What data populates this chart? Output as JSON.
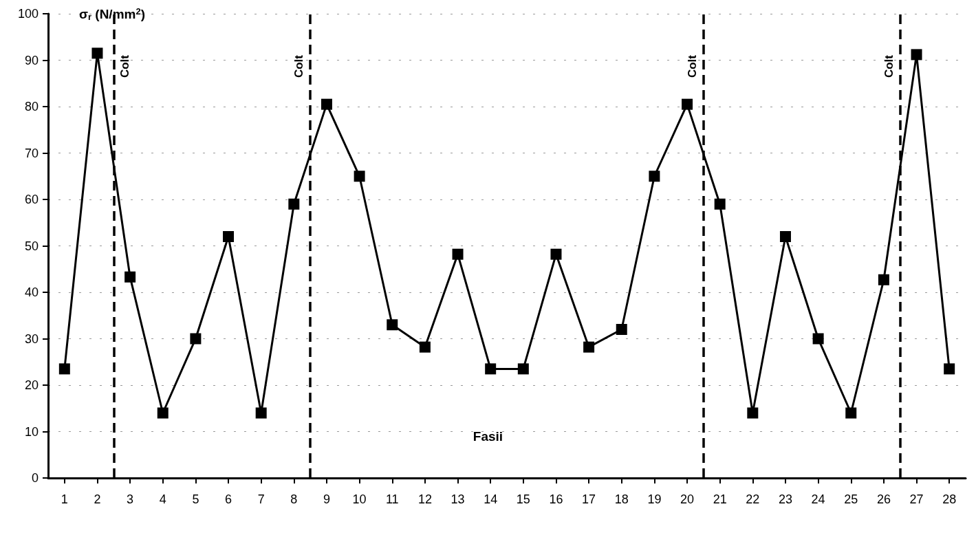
{
  "chart_data": {
    "type": "line",
    "xlabel": "Fasii",
    "ylabel": "σ$_{r}$ (N/mm$^{2}$)",
    "x": [
      1,
      2,
      3,
      4,
      5,
      6,
      7,
      8,
      9,
      10,
      11,
      12,
      13,
      14,
      15,
      16,
      17,
      18,
      19,
      20,
      21,
      22,
      23,
      24,
      25,
      26,
      27,
      28
    ],
    "xlim": [
      0.5,
      28.5
    ],
    "xticks": [
      1,
      2,
      3,
      4,
      5,
      6,
      7,
      8,
      9,
      10,
      11,
      12,
      13,
      14,
      15,
      16,
      17,
      18,
      19,
      20,
      21,
      22,
      23,
      24,
      25,
      26,
      27,
      28
    ],
    "values": [
      23.5,
      91.5,
      43.3,
      14,
      30,
      52,
      14,
      59,
      80.5,
      65,
      33,
      28.2,
      48.2,
      23.5,
      23.5,
      48.2,
      28.2,
      32,
      65,
      80.5,
      59,
      14,
      52,
      30,
      14,
      42.7,
      91.2,
      23.5
    ],
    "color": "#000000",
    "marker": "square",
    "line_style": "solid",
    "ylim": [
      0,
      100
    ],
    "yticks": [
      0,
      10,
      20,
      30,
      40,
      50,
      60,
      70,
      80,
      90,
      100
    ],
    "grid": "y",
    "ref_lines": [
      {
        "axis": "x",
        "value": 2.5,
        "label": "Colt",
        "line_style": "dashed"
      },
      {
        "axis": "x",
        "value": 8.5,
        "label": "Colt",
        "line_style": "dashed"
      },
      {
        "axis": "x",
        "value": 20.5,
        "label": "Colt",
        "line_style": "dashed"
      },
      {
        "axis": "x",
        "value": 26.5,
        "label": "Colt",
        "line_style": "dashed"
      }
    ]
  }
}
